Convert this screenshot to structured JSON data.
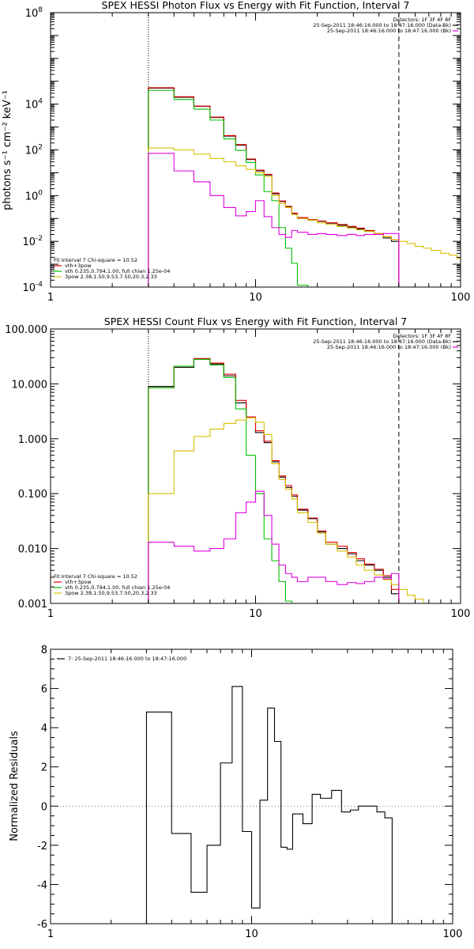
{
  "chart_data": [
    {
      "type": "line",
      "title": "SPEX HESSI Photon Flux vs Energy with Fit Function, Interval 7",
      "xlabel": "",
      "ylabel": "photons s⁻¹ cm⁻² keV⁻¹",
      "xscale": "log",
      "yscale": "log",
      "xlim": [
        1,
        100
      ],
      "ylim": [
        0.0001,
        100000000
      ],
      "xticks": [
        1,
        10,
        100
      ],
      "xtick_labels": [
        "1",
        "10",
        "100"
      ],
      "yticks": [
        0.0001,
        0.01,
        1,
        100,
        10000,
        100000000
      ],
      "ytick_labels": [
        {
          "base": "10",
          "exp": "-4"
        },
        {
          "base": "10",
          "exp": "-2"
        },
        {
          "base": "10",
          "exp": "0"
        },
        {
          "base": "10",
          "exp": "2"
        },
        {
          "base": "10",
          "exp": "4"
        },
        {
          "base": "10",
          "exp": "8"
        }
      ],
      "vlines": [
        {
          "x": 3,
          "style": "dotted"
        },
        {
          "x": 50,
          "style": "dashed"
        }
      ],
      "legend_upper_right": [
        {
          "text": "Detectors: 1F 3F 4F 8F",
          "color": ""
        },
        {
          "text": "25-Sep-2011 18:46:16.000 to 18:47:16.000 (Data-Bk)",
          "color": "#000000"
        },
        {
          "text": "25-Sep-2011 18:46:16.000 to 18:47:16.000 (Bk)",
          "color": "#e000e0"
        }
      ],
      "legend_lower_left": [
        {
          "text": "Fit Interval  7    Chi-square = 10.52",
          "color": ""
        },
        {
          "text": "vth+3pow",
          "color": "#e00000"
        },
        {
          "text": "vth 0.235,0.794,1.00, full chian 1.25e-04",
          "color": "#00c000"
        },
        {
          "text": "3pow 2.38,1.50,9.53,7.50,20.3,2.33",
          "color": "#d8c000"
        }
      ],
      "edges": [
        3,
        4,
        5,
        6,
        7,
        8,
        9,
        10,
        11,
        12,
        13,
        14,
        15,
        16,
        18,
        20,
        22,
        25,
        28,
        31,
        34,
        38,
        42,
        46,
        50,
        55,
        60,
        66,
        72,
        80,
        88,
        96,
        100
      ],
      "series": [
        {
          "name": "Data-Bk",
          "color": "#000000",
          "end": 50,
          "values": [
            50000,
            20000,
            8000,
            2600,
            400,
            160,
            38,
            12,
            8,
            1.2,
            0.55,
            0.32,
            0.16,
            0.1,
            0.085,
            0.075,
            0.062,
            0.05,
            0.042,
            0.035,
            0.028,
            0.02,
            0.014,
            0.01
          ]
        },
        {
          "name": "vth+3pow",
          "color": "#e00000",
          "end": 50,
          "values": [
            52000,
            21000,
            8200,
            2700,
            420,
            170,
            40,
            13,
            8.5,
            1.3,
            0.58,
            0.34,
            0.17,
            0.11,
            0.09,
            0.078,
            0.065,
            0.055,
            0.045,
            0.038,
            0.03,
            0.022,
            0.016,
            0.012
          ]
        },
        {
          "name": "vth",
          "color": "#00c000",
          "end": 18,
          "values": [
            40000,
            16000,
            6000,
            2000,
            300,
            95,
            28,
            8,
            1.5,
            0.6,
            0.04,
            0.005,
            0.0011,
            0.00012
          ]
        },
        {
          "name": "3pow",
          "color": "#d8c000",
          "end": 100,
          "values": [
            120,
            100,
            65,
            42,
            30,
            20,
            14,
            10,
            7,
            1,
            0.45,
            0.3,
            0.15,
            0.1,
            0.085,
            0.065,
            0.055,
            0.045,
            0.038,
            0.032,
            0.027,
            0.022,
            0.016,
            0.012,
            0.01,
            0.008,
            0.006,
            0.005,
            0.004,
            0.003,
            0.0025,
            0.0018
          ]
        },
        {
          "name": "Bk",
          "color": "#e000e0",
          "end": 50,
          "values": [
            70,
            12,
            4,
            1,
            0.3,
            0.13,
            0.2,
            0.6,
            0.12,
            0.04,
            0.02,
            0.015,
            0.03,
            0.025,
            0.02,
            0.022,
            0.02,
            0.018,
            0.02,
            0.018,
            0.02,
            0.02,
            0.022,
            0.022
          ]
        }
      ]
    },
    {
      "type": "line",
      "title": "SPEX HESSI Count Flux vs Energy with Fit Function, Interval 7",
      "xlabel": "",
      "ylabel": "",
      "xscale": "log",
      "yscale": "log",
      "xlim": [
        1,
        100
      ],
      "ylim": [
        0.001,
        100
      ],
      "xticks": [
        1,
        10,
        100
      ],
      "xtick_labels": [
        "1",
        "10",
        "100"
      ],
      "yticks": [
        0.001,
        0.01,
        0.1,
        1,
        10,
        100
      ],
      "ytick_labels": [
        "0.001",
        "0.010",
        "0.100",
        "1.000",
        "10.000",
        "100.000"
      ],
      "vlines": [
        {
          "x": 3,
          "style": "dotted"
        },
        {
          "x": 50,
          "style": "dashed"
        }
      ],
      "legend_upper_right": [
        {
          "text": "Detectors: 1F 3F 4F 8F",
          "color": ""
        },
        {
          "text": "25-Sep-2011 18:46:16.000 to 18:47:16.000 (Data-Bk)",
          "color": "#000000"
        },
        {
          "text": "25-Sep-2011 18:46:16.000 to 18:47:16.000 (Bk)",
          "color": "#e000e0"
        }
      ],
      "legend_lower_left": [
        {
          "text": "Fit Interval  7    Chi-square = 10.52",
          "color": ""
        },
        {
          "text": "vth+3pow",
          "color": "#e00000"
        },
        {
          "text": "vth 0.235,0.794,1.00, full chian 1.25e-04",
          "color": "#00c000"
        },
        {
          "text": "3pow 2.38,1.50,9.53,7.50,20.3,2.33",
          "color": "#d8c000"
        }
      ],
      "edges": [
        3,
        4,
        5,
        6,
        7,
        8,
        9,
        10,
        11,
        12,
        13,
        14,
        15,
        16,
        18,
        20,
        22,
        25,
        28,
        31,
        34,
        38,
        42,
        46,
        50,
        55,
        60,
        66,
        72,
        80,
        88,
        96,
        100
      ],
      "series": [
        {
          "name": "Data-Bk",
          "color": "#000000",
          "end": 50,
          "values": [
            9,
            20,
            28,
            23,
            14,
            4.5,
            2.4,
            1.3,
            0.85,
            0.38,
            0.2,
            0.13,
            0.09,
            0.05,
            0.035,
            0.02,
            0.012,
            0.01,
            0.008,
            0.006,
            0.005,
            0.004,
            0.003,
            0.0015
          ]
        },
        {
          "name": "vth+3pow",
          "color": "#e00000",
          "end": 50,
          "values": [
            8.5,
            21,
            29,
            24,
            15,
            5,
            2.5,
            1.4,
            0.9,
            0.4,
            0.21,
            0.14,
            0.095,
            0.052,
            0.036,
            0.021,
            0.013,
            0.011,
            0.0085,
            0.0065,
            0.0052,
            0.0042,
            0.0032,
            0.0018
          ]
        },
        {
          "name": "vth",
          "color": "#00c000",
          "end": 16,
          "values": [
            8.5,
            21,
            28,
            22,
            13,
            3.5,
            0.5,
            0.1,
            0.015,
            0.006,
            0.0025,
            0.0011,
            0.001
          ]
        },
        {
          "name": "3pow",
          "color": "#d8c000",
          "end": 72,
          "values": [
            0.1,
            0.6,
            1.1,
            1.5,
            1.9,
            2.2,
            2.4,
            2.0,
            1.2,
            0.35,
            0.18,
            0.12,
            0.08,
            0.045,
            0.03,
            0.019,
            0.012,
            0.009,
            0.007,
            0.005,
            0.004,
            0.0033,
            0.0027,
            0.0022,
            0.0018,
            0.0014,
            0.0012,
            0.001
          ]
        },
        {
          "name": "Bk",
          "color": "#e000e0",
          "end": 50,
          "values": [
            0.013,
            0.011,
            0.009,
            0.01,
            0.015,
            0.045,
            0.07,
            0.11,
            0.04,
            0.012,
            0.005,
            0.0035,
            0.003,
            0.0025,
            0.003,
            0.003,
            0.0025,
            0.0022,
            0.0024,
            0.0023,
            0.0025,
            0.003,
            0.0028,
            0.0035
          ]
        }
      ]
    },
    {
      "type": "line",
      "title": "",
      "xlabel": "",
      "ylabel": "Normalized Residuals",
      "xscale": "log",
      "yscale": "linear",
      "xlim": [
        1,
        100
      ],
      "ylim": [
        -6,
        8
      ],
      "xticks": [
        1,
        10,
        100
      ],
      "xtick_labels": [
        "1",
        "10",
        "100"
      ],
      "yticks": [
        -6,
        -4,
        -2,
        0,
        2,
        4,
        6,
        8
      ],
      "ytick_labels": [
        "-6",
        "-4",
        "-2",
        "0",
        "2",
        "4",
        "6",
        "8"
      ],
      "legend_upper_left": [
        {
          "text": "7: 25-Sep-2011 18:46:16.000 to 18:47:16.000",
          "color": "#000000"
        }
      ],
      "edges": [
        3,
        4,
        5,
        6,
        7,
        8,
        9,
        10,
        11,
        12,
        13,
        14,
        15,
        16,
        18,
        20,
        22,
        25,
        28,
        31,
        34,
        38,
        42,
        46,
        50
      ],
      "series": [
        {
          "name": "7: 25-Sep-2011 18:46:16.000 to 18:47:16.000",
          "color": "#000000",
          "end": 50,
          "values": [
            4.8,
            -1.4,
            -4.4,
            -2.0,
            2.2,
            6.1,
            -1.3,
            -5.2,
            0.3,
            5.0,
            3.3,
            -2.1,
            -2.2,
            -0.4,
            -0.9,
            0.6,
            0.4,
            0.8,
            -0.3,
            -0.2,
            0.0,
            0.0,
            -0.3,
            -0.6
          ]
        }
      ]
    }
  ]
}
